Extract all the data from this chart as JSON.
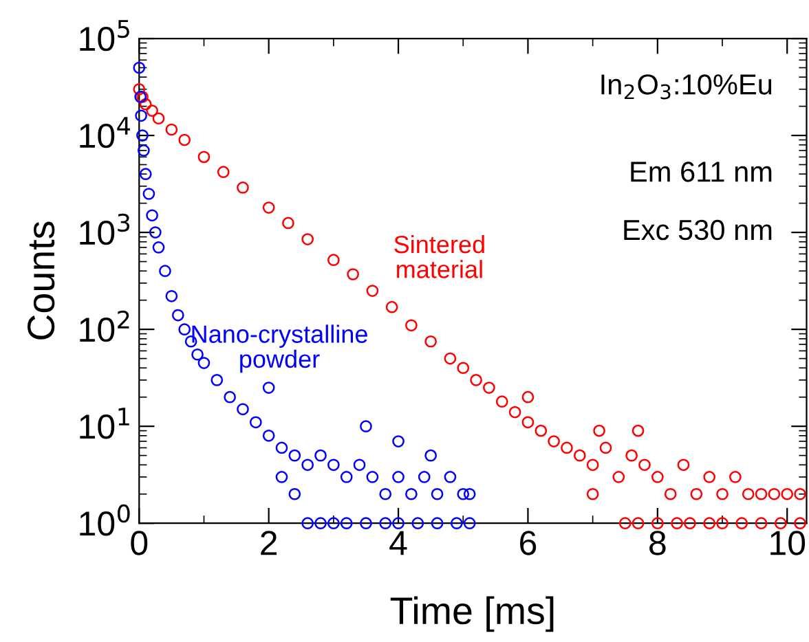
{
  "chart_data": {
    "type": "scatter",
    "xlabel": "Time [ms]",
    "ylabel": "Counts",
    "log": "y",
    "marker": "circle",
    "grid": false,
    "legend": false,
    "xlim": [
      0,
      10.3
    ],
    "xticks": [
      0,
      2,
      4,
      6,
      8,
      10
    ],
    "ylim": [
      1,
      100000
    ],
    "yticks": [
      {
        "value": 1,
        "label": "10$^{0}$"
      },
      {
        "value": 10,
        "label": "10$^{1}$"
      },
      {
        "value": 100,
        "label": "10$^{2}$"
      },
      {
        "value": 1000,
        "label": "10$^{3}$"
      },
      {
        "value": 10000,
        "label": "10$^{4}$"
      },
      {
        "value": 100000,
        "label": "10$^{5}$"
      }
    ],
    "annotations": [
      "In$_{2}$O$_{3}$:10%Eu",
      "Em 611 nm",
      "Exc 530 nm"
    ],
    "series": [
      {
        "name": "Sintered material",
        "color": "#ff0000",
        "x": [
          0,
          0.05,
          0.1,
          0.2,
          0.3,
          0.5,
          0.7,
          1.0,
          1.3,
          1.6,
          2.0,
          2.3,
          2.6,
          3.0,
          3.3,
          3.6,
          3.9,
          4.2,
          4.5,
          4.8,
          5.0,
          5.2,
          5.4,
          5.6,
          5.8,
          6.0,
          6.0,
          6.2,
          6.4,
          6.6,
          6.8,
          7.0,
          7.1,
          7.2,
          7.4,
          7.6,
          7.7,
          7.8,
          8.0,
          8.2,
          8.4,
          8.6,
          8.8,
          9.0,
          9.2,
          9.4,
          9.6,
          9.8,
          10.0,
          10.2,
          7.0,
          7.5,
          7.7,
          8.0,
          8.3,
          8.5,
          8.8,
          9.0,
          9.3,
          9.6,
          9.9,
          10.2
        ],
        "values": [
          30000,
          25000,
          21000,
          18000,
          15000,
          11500,
          9000,
          6000,
          4200,
          2900,
          1800,
          1250,
          850,
          520,
          370,
          250,
          170,
          110,
          75,
          50,
          40,
          30,
          25,
          18,
          14,
          11,
          20,
          9,
          7,
          6,
          5,
          4,
          9,
          6,
          3,
          5,
          9,
          4,
          3,
          2,
          4,
          2,
          3,
          2,
          3,
          2,
          2,
          2,
          2,
          2,
          2,
          1,
          1,
          1,
          1,
          1,
          1,
          1,
          1,
          1,
          1,
          1
        ]
      },
      {
        "name": "Nano-crystalline powder",
        "color": "#0000ff",
        "x": [
          0,
          0.02,
          0.03,
          0.05,
          0.07,
          0.1,
          0.15,
          0.2,
          0.25,
          0.3,
          0.4,
          0.5,
          0.6,
          0.7,
          0.8,
          0.9,
          1.0,
          1.2,
          1.4,
          1.6,
          1.8,
          2.0,
          2.0,
          2.2,
          2.4,
          2.6,
          2.8,
          3.0,
          3.2,
          3.4,
          3.5,
          3.6,
          3.8,
          4.0,
          4.0,
          4.2,
          4.4,
          4.5,
          4.6,
          4.8,
          5.0,
          5.1,
          2.2,
          2.4,
          2.6,
          2.8,
          3.0,
          3.2,
          3.5,
          3.8,
          4.0,
          4.3,
          4.6,
          4.9,
          5.1
        ],
        "values": [
          50000,
          25000,
          16000,
          10000,
          7000,
          4000,
          2500,
          1500,
          1000,
          700,
          400,
          220,
          140,
          100,
          75,
          55,
          45,
          30,
          20,
          15,
          11,
          8,
          25,
          6,
          5,
          4,
          5,
          4,
          3,
          4,
          10,
          3,
          2,
          3,
          7,
          2,
          3,
          5,
          2,
          3,
          2,
          2,
          3,
          2,
          1,
          1,
          1,
          1,
          1,
          1,
          1,
          1,
          1,
          1,
          1
        ]
      }
    ]
  }
}
